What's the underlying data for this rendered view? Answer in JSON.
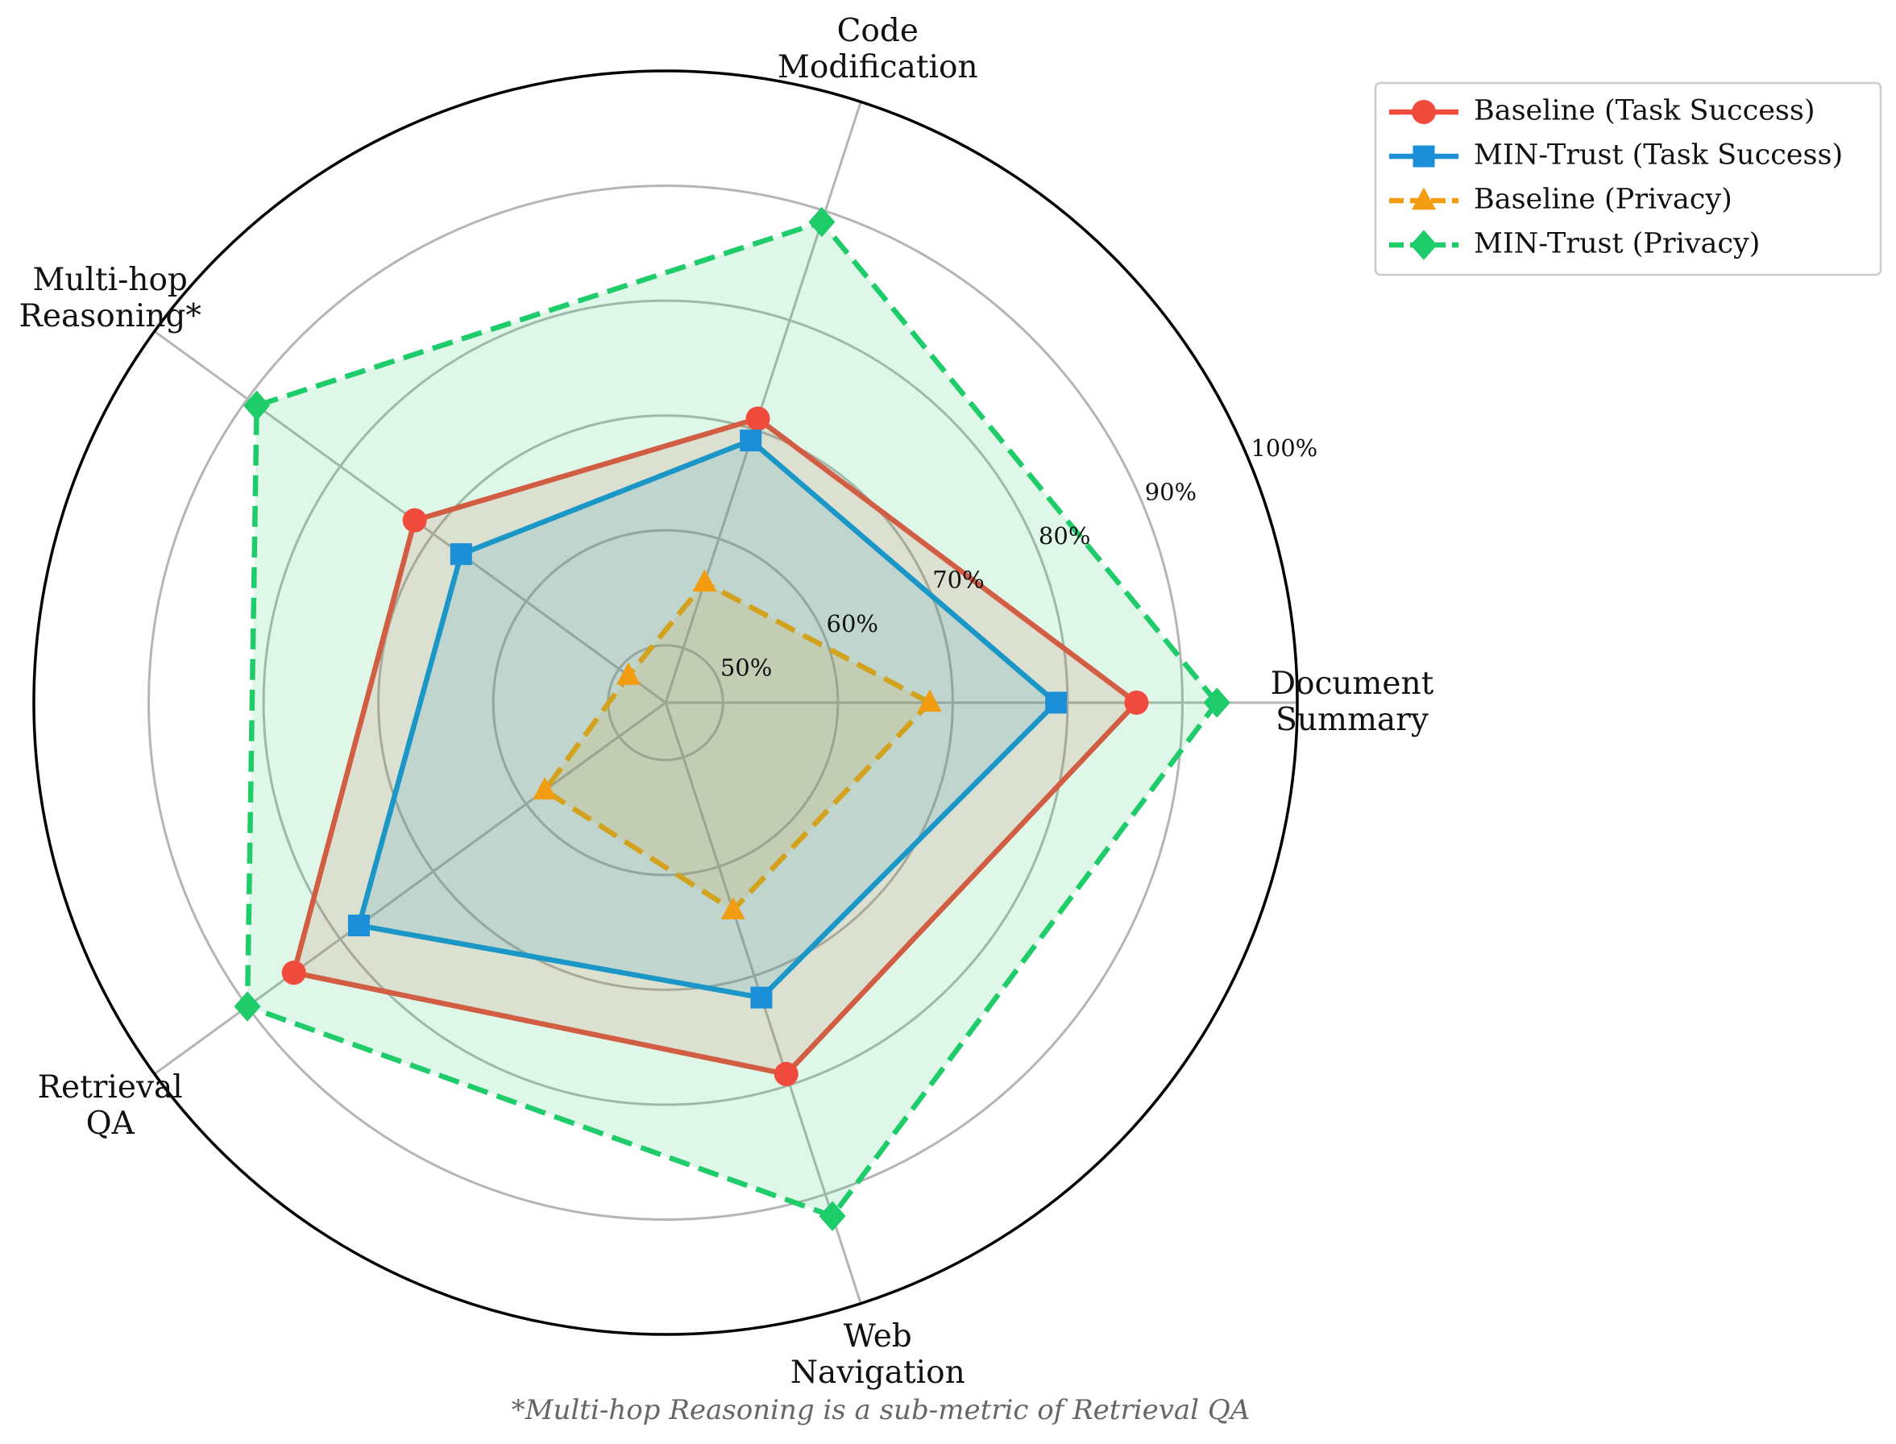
{
  "chart_data": {
    "type": "radar",
    "categories": [
      "Document\nSummary",
      "Code\nModification",
      "Multi-hop\nReasoning*",
      "Retrieval\nQA",
      "Web\nNavigation"
    ],
    "ylim": [
      45,
      100
    ],
    "yticks": [
      {
        "value": 50,
        "label": "50%"
      },
      {
        "value": 60,
        "label": "60%"
      },
      {
        "value": 70,
        "label": "70%"
      },
      {
        "value": 80,
        "label": "80%"
      },
      {
        "value": 90,
        "label": "90%"
      },
      {
        "value": 100,
        "label": "100%"
      }
    ],
    "grid": true,
    "legend": "upper right",
    "series": [
      {
        "name": "Baseline (Task Success)",
        "color": "#f04b3c",
        "marker": "circle",
        "linestyle": "solid",
        "values": [
          86,
          71,
          72,
          85,
          79
        ]
      },
      {
        "name": "MIN-Trust (Task Success)",
        "color": "#1b8fd8",
        "marker": "square",
        "linestyle": "solid",
        "values": [
          79,
          69,
          67,
          78,
          72
        ]
      },
      {
        "name": "Baseline (Privacy)",
        "color": "#f39c12",
        "marker": "triangle",
        "linestyle": "dashed",
        "values": [
          68,
          56,
          49,
          58,
          64
        ]
      },
      {
        "name": "MIN-Trust (Privacy)",
        "color": "#1fcc6a",
        "marker": "diamond",
        "linestyle": "dashed",
        "values": [
          93,
          89,
          89,
          90,
          92
        ]
      }
    ],
    "footnote": "*Multi-hop Reasoning is a sub-metric of Retrieval QA"
  }
}
